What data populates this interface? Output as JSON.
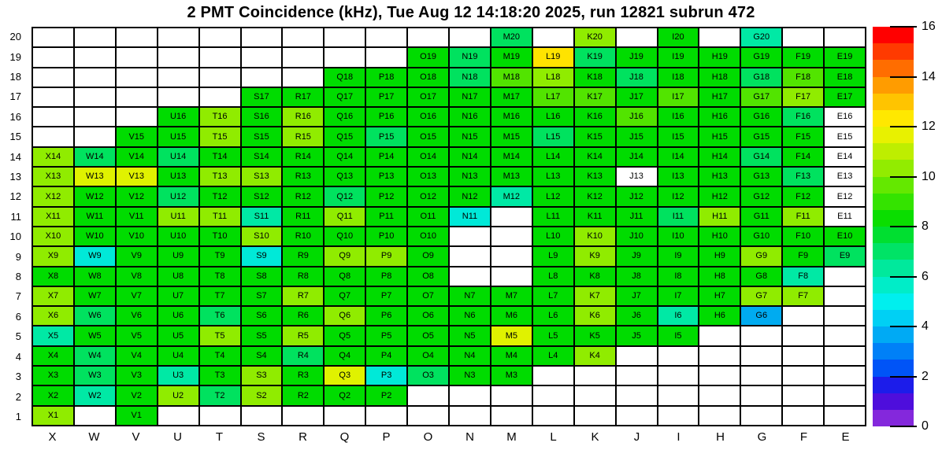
{
  "title": "2 PMT Coincidence (kHz), Tue Aug 12 14:18:20 2025, run 12821 subrun 472",
  "chart_data": {
    "type": "heatmap",
    "title": "2 PMT Coincidence (kHz), Tue Aug 12 14:18:20 2025, run 12821 subrun 472",
    "legend_position": "right",
    "zlim": [
      0,
      16
    ],
    "columns": [
      "X",
      "W",
      "V",
      "U",
      "T",
      "S",
      "R",
      "Q",
      "P",
      "O",
      "N",
      "M",
      "L",
      "K",
      "J",
      "I",
      "H",
      "G",
      "F",
      "E"
    ],
    "rows": [
      20,
      19,
      18,
      17,
      16,
      15,
      14,
      13,
      12,
      11,
      10,
      9,
      8,
      7,
      6,
      5,
      4,
      3,
      2,
      1
    ],
    "color_classes": {
      "g": "#00DC00",
      "lg": "#52E400",
      "yg": "#90EC00",
      "ly": "#E0F200",
      "y": "#FFE300",
      "sg": "#00E25F",
      "mg": "#00E9A5",
      "cy": "#00E9D8",
      "az": "#00ABF0",
      "w": "#FFFFFF"
    },
    "approx_value_per_class_khz": {
      "g": 9,
      "lg": 10,
      "yg": 11,
      "ly": 12.3,
      "y": 12.8,
      "sg": 8.2,
      "mg": 7.3,
      "cy": 6.3,
      "az": 4.7,
      "w": null
    },
    "cells": [
      [
        null,
        null,
        null,
        null,
        null,
        null,
        null,
        null,
        null,
        null,
        null,
        [
          "M20",
          "sg"
        ],
        null,
        [
          "K20",
          "yg"
        ],
        null,
        [
          "I20",
          "g"
        ],
        null,
        [
          "G20",
          "mg"
        ],
        null,
        null
      ],
      [
        null,
        null,
        null,
        null,
        null,
        null,
        null,
        null,
        null,
        [
          "O19",
          "g"
        ],
        [
          "N19",
          "sg"
        ],
        [
          "M19",
          "g"
        ],
        [
          "L19",
          "y"
        ],
        [
          "K19",
          "sg"
        ],
        [
          "J19",
          "g"
        ],
        [
          "I19",
          "g"
        ],
        [
          "H19",
          "g"
        ],
        [
          "G19",
          "g"
        ],
        [
          "F19",
          "g"
        ],
        [
          "E19",
          "g"
        ]
      ],
      [
        null,
        null,
        null,
        null,
        null,
        null,
        null,
        [
          "Q18",
          "g"
        ],
        [
          "P18",
          "g"
        ],
        [
          "O18",
          "g"
        ],
        [
          "N18",
          "sg"
        ],
        [
          "M18",
          "lg"
        ],
        [
          "L18",
          "yg"
        ],
        [
          "K18",
          "g"
        ],
        [
          "J18",
          "sg"
        ],
        [
          "I18",
          "g"
        ],
        [
          "H18",
          "g"
        ],
        [
          "G18",
          "sg"
        ],
        [
          "F18",
          "lg"
        ],
        [
          "E18",
          "g"
        ]
      ],
      [
        null,
        null,
        null,
        null,
        null,
        [
          "S17",
          "g"
        ],
        [
          "R17",
          "g"
        ],
        [
          "Q17",
          "g"
        ],
        [
          "P17",
          "g"
        ],
        [
          "O17",
          "g"
        ],
        [
          "N17",
          "g"
        ],
        [
          "M17",
          "g"
        ],
        [
          "L17",
          "lg"
        ],
        [
          "K17",
          "lg"
        ],
        [
          "J17",
          "g"
        ],
        [
          "I17",
          "lg"
        ],
        [
          "H17",
          "g"
        ],
        [
          "G17",
          "lg"
        ],
        [
          "F17",
          "yg"
        ],
        [
          "E17",
          "g"
        ]
      ],
      [
        null,
        null,
        null,
        [
          "U16",
          "g"
        ],
        [
          "T16",
          "yg"
        ],
        [
          "S16",
          "g"
        ],
        [
          "R16",
          "yg"
        ],
        [
          "Q16",
          "g"
        ],
        [
          "P16",
          "g"
        ],
        [
          "O16",
          "g"
        ],
        [
          "N16",
          "g"
        ],
        [
          "M16",
          "g"
        ],
        [
          "L16",
          "g"
        ],
        [
          "K16",
          "g"
        ],
        [
          "J16",
          "lg"
        ],
        [
          "I16",
          "g"
        ],
        [
          "H16",
          "g"
        ],
        [
          "G16",
          "g"
        ],
        [
          "F16",
          "sg"
        ],
        [
          "E16",
          "w"
        ]
      ],
      [
        null,
        null,
        [
          "V15",
          "g"
        ],
        [
          "U15",
          "g"
        ],
        [
          "T15",
          "yg"
        ],
        [
          "S15",
          "g"
        ],
        [
          "R15",
          "yg"
        ],
        [
          "Q15",
          "g"
        ],
        [
          "P15",
          "sg"
        ],
        [
          "O15",
          "g"
        ],
        [
          "N15",
          "g"
        ],
        [
          "M15",
          "g"
        ],
        [
          "L15",
          "sg"
        ],
        [
          "K15",
          "g"
        ],
        [
          "J15",
          "g"
        ],
        [
          "I15",
          "g"
        ],
        [
          "H15",
          "g"
        ],
        [
          "G15",
          "g"
        ],
        [
          "F15",
          "g"
        ],
        [
          "E15",
          "w"
        ]
      ],
      [
        [
          "X14",
          "yg"
        ],
        [
          "W14",
          "sg"
        ],
        [
          "V14",
          "g"
        ],
        [
          "U14",
          "sg"
        ],
        [
          "T14",
          "g"
        ],
        [
          "S14",
          "g"
        ],
        [
          "R14",
          "g"
        ],
        [
          "Q14",
          "g"
        ],
        [
          "P14",
          "g"
        ],
        [
          "O14",
          "g"
        ],
        [
          "N14",
          "g"
        ],
        [
          "M14",
          "g"
        ],
        [
          "L14",
          "g"
        ],
        [
          "K14",
          "g"
        ],
        [
          "J14",
          "g"
        ],
        [
          "I14",
          "g"
        ],
        [
          "H14",
          "g"
        ],
        [
          "G14",
          "sg"
        ],
        [
          "F14",
          "g"
        ],
        [
          "E14",
          "w"
        ]
      ],
      [
        [
          "X13",
          "yg"
        ],
        [
          "W13",
          "ly"
        ],
        [
          "V13",
          "ly"
        ],
        [
          "U13",
          "g"
        ],
        [
          "T13",
          "yg"
        ],
        [
          "S13",
          "yg"
        ],
        [
          "R13",
          "g"
        ],
        [
          "Q13",
          "g"
        ],
        [
          "P13",
          "g"
        ],
        [
          "O13",
          "g"
        ],
        [
          "N13",
          "g"
        ],
        [
          "M13",
          "g"
        ],
        [
          "L13",
          "g"
        ],
        [
          "K13",
          "g"
        ],
        [
          "J13",
          "w"
        ],
        [
          "I13",
          "g"
        ],
        [
          "H13",
          "g"
        ],
        [
          "G13",
          "g"
        ],
        [
          "F13",
          "sg"
        ],
        [
          "E13",
          "w"
        ]
      ],
      [
        [
          "X12",
          "yg"
        ],
        [
          "W12",
          "g"
        ],
        [
          "V12",
          "g"
        ],
        [
          "U12",
          "sg"
        ],
        [
          "T12",
          "g"
        ],
        [
          "S12",
          "g"
        ],
        [
          "R12",
          "g"
        ],
        [
          "Q12",
          "sg"
        ],
        [
          "P12",
          "g"
        ],
        [
          "O12",
          "g"
        ],
        [
          "N12",
          "g"
        ],
        [
          "M12",
          "mg"
        ],
        [
          "L12",
          "g"
        ],
        [
          "K12",
          "g"
        ],
        [
          "J12",
          "g"
        ],
        [
          "I12",
          "g"
        ],
        [
          "H12",
          "g"
        ],
        [
          "G12",
          "g"
        ],
        [
          "F12",
          "g"
        ],
        [
          "E12",
          "w"
        ]
      ],
      [
        [
          "X11",
          "yg"
        ],
        [
          "W11",
          "g"
        ],
        [
          "V11",
          "g"
        ],
        [
          "U11",
          "yg"
        ],
        [
          "T11",
          "yg"
        ],
        [
          "S11",
          "mg"
        ],
        [
          "R11",
          "g"
        ],
        [
          "Q11",
          "yg"
        ],
        [
          "P11",
          "g"
        ],
        [
          "O11",
          "g"
        ],
        [
          "N11",
          "cy"
        ],
        null,
        [
          "L11",
          "g"
        ],
        [
          "K11",
          "g"
        ],
        [
          "J11",
          "g"
        ],
        [
          "I11",
          "sg"
        ],
        [
          "H11",
          "yg"
        ],
        [
          "G11",
          "g"
        ],
        [
          "F11",
          "yg"
        ],
        [
          "E11",
          "w"
        ]
      ],
      [
        [
          "X10",
          "yg"
        ],
        [
          "W10",
          "g"
        ],
        [
          "V10",
          "g"
        ],
        [
          "U10",
          "g"
        ],
        [
          "T10",
          "g"
        ],
        [
          "S10",
          "yg"
        ],
        [
          "R10",
          "g"
        ],
        [
          "Q10",
          "g"
        ],
        [
          "P10",
          "g"
        ],
        [
          "O10",
          "g"
        ],
        null,
        null,
        [
          "L10",
          "g"
        ],
        [
          "K10",
          "yg"
        ],
        [
          "J10",
          "g"
        ],
        [
          "I10",
          "g"
        ],
        [
          "H10",
          "g"
        ],
        [
          "G10",
          "g"
        ],
        [
          "F10",
          "g"
        ],
        [
          "E10",
          "g"
        ]
      ],
      [
        [
          "X9",
          "yg"
        ],
        [
          "W9",
          "cy"
        ],
        [
          "V9",
          "g"
        ],
        [
          "U9",
          "g"
        ],
        [
          "T9",
          "g"
        ],
        [
          "S9",
          "cy"
        ],
        [
          "R9",
          "g"
        ],
        [
          "Q9",
          "yg"
        ],
        [
          "P9",
          "yg"
        ],
        [
          "O9",
          "g"
        ],
        null,
        null,
        [
          "L9",
          "g"
        ],
        [
          "K9",
          "yg"
        ],
        [
          "J9",
          "g"
        ],
        [
          "I9",
          "g"
        ],
        [
          "H9",
          "g"
        ],
        [
          "G9",
          "yg"
        ],
        [
          "F9",
          "g"
        ],
        [
          "E9",
          "sg"
        ]
      ],
      [
        [
          "X8",
          "g"
        ],
        [
          "W8",
          "g"
        ],
        [
          "V8",
          "g"
        ],
        [
          "U8",
          "g"
        ],
        [
          "T8",
          "g"
        ],
        [
          "S8",
          "g"
        ],
        [
          "R8",
          "g"
        ],
        [
          "Q8",
          "g"
        ],
        [
          "P8",
          "g"
        ],
        [
          "O8",
          "g"
        ],
        null,
        null,
        [
          "L8",
          "g"
        ],
        [
          "K8",
          "g"
        ],
        [
          "J8",
          "g"
        ],
        [
          "I8",
          "g"
        ],
        [
          "H8",
          "g"
        ],
        [
          "G8",
          "g"
        ],
        [
          "F8",
          "mg"
        ],
        null
      ],
      [
        [
          "X7",
          "yg"
        ],
        [
          "W7",
          "g"
        ],
        [
          "V7",
          "g"
        ],
        [
          "U7",
          "g"
        ],
        [
          "T7",
          "g"
        ],
        [
          "S7",
          "g"
        ],
        [
          "R7",
          "yg"
        ],
        [
          "Q7",
          "g"
        ],
        [
          "P7",
          "g"
        ],
        [
          "O7",
          "g"
        ],
        [
          "N7",
          "g"
        ],
        [
          "M7",
          "g"
        ],
        [
          "L7",
          "g"
        ],
        [
          "K7",
          "yg"
        ],
        [
          "J7",
          "g"
        ],
        [
          "I7",
          "g"
        ],
        [
          "H7",
          "g"
        ],
        [
          "G7",
          "yg"
        ],
        [
          "F7",
          "yg"
        ],
        null
      ],
      [
        [
          "X6",
          "yg"
        ],
        [
          "W6",
          "sg"
        ],
        [
          "V6",
          "g"
        ],
        [
          "U6",
          "g"
        ],
        [
          "T6",
          "sg"
        ],
        [
          "S6",
          "g"
        ],
        [
          "R6",
          "g"
        ],
        [
          "Q6",
          "yg"
        ],
        [
          "P6",
          "g"
        ],
        [
          "O6",
          "g"
        ],
        [
          "N6",
          "g"
        ],
        [
          "M6",
          "g"
        ],
        [
          "L6",
          "g"
        ],
        [
          "K6",
          "yg"
        ],
        [
          "J6",
          "g"
        ],
        [
          "I6",
          "mg"
        ],
        [
          "H6",
          "g"
        ],
        [
          "G6",
          "az"
        ],
        null,
        null
      ],
      [
        [
          "X5",
          "mg"
        ],
        [
          "W5",
          "g"
        ],
        [
          "V5",
          "g"
        ],
        [
          "U5",
          "g"
        ],
        [
          "T5",
          "yg"
        ],
        [
          "S5",
          "g"
        ],
        [
          "R5",
          "yg"
        ],
        [
          "Q5",
          "g"
        ],
        [
          "P5",
          "g"
        ],
        [
          "O5",
          "g"
        ],
        [
          "N5",
          "g"
        ],
        [
          "M5",
          "ly"
        ],
        [
          "L5",
          "g"
        ],
        [
          "K5",
          "g"
        ],
        [
          "J5",
          "g"
        ],
        [
          "I5",
          "g"
        ],
        null,
        null,
        null,
        null
      ],
      [
        [
          "X4",
          "g"
        ],
        [
          "W4",
          "sg"
        ],
        [
          "V4",
          "g"
        ],
        [
          "U4",
          "g"
        ],
        [
          "T4",
          "g"
        ],
        [
          "S4",
          "g"
        ],
        [
          "R4",
          "sg"
        ],
        [
          "Q4",
          "g"
        ],
        [
          "P4",
          "g"
        ],
        [
          "O4",
          "g"
        ],
        [
          "N4",
          "g"
        ],
        [
          "M4",
          "g"
        ],
        [
          "L4",
          "g"
        ],
        [
          "K4",
          "yg"
        ],
        null,
        null,
        null,
        null,
        null,
        null
      ],
      [
        [
          "X3",
          "g"
        ],
        [
          "W3",
          "sg"
        ],
        [
          "V3",
          "g"
        ],
        [
          "U3",
          "mg"
        ],
        [
          "T3",
          "g"
        ],
        [
          "S3",
          "yg"
        ],
        [
          "R3",
          "g"
        ],
        [
          "Q3",
          "ly"
        ],
        [
          "P3",
          "cy"
        ],
        [
          "O3",
          "sg"
        ],
        [
          "N3",
          "g"
        ],
        [
          "M3",
          "g"
        ],
        null,
        null,
        null,
        null,
        null,
        null,
        null,
        null
      ],
      [
        [
          "X2",
          "g"
        ],
        [
          "W2",
          "mg"
        ],
        [
          "V2",
          "g"
        ],
        [
          "U2",
          "yg"
        ],
        [
          "T2",
          "sg"
        ],
        [
          "S2",
          "yg"
        ],
        [
          "R2",
          "g"
        ],
        [
          "Q2",
          "g"
        ],
        [
          "P2",
          "g"
        ],
        null,
        null,
        null,
        null,
        null,
        null,
        null,
        null,
        null,
        null,
        null
      ],
      [
        [
          "X1",
          "yg"
        ],
        null,
        [
          "V1",
          "g"
        ],
        null,
        null,
        null,
        null,
        null,
        null,
        null,
        null,
        null,
        null,
        null,
        null,
        null,
        null,
        null,
        null,
        null
      ]
    ]
  },
  "colorbar": {
    "tick_labels": [
      "16",
      "14",
      "12",
      "10",
      "8",
      "6",
      "4",
      "2",
      "0"
    ],
    "tick_values": [
      16,
      14,
      12,
      10,
      8,
      6,
      4,
      2,
      0
    ],
    "band_colors": [
      "#FF0000",
      "#FF3A00",
      "#FF6D00",
      "#FF9C00",
      "#FFC400",
      "#FFE800",
      "#E8F100",
      "#BEEE00",
      "#92EC00",
      "#64E800",
      "#34E300",
      "#0ADE00",
      "#00DF30",
      "#00E366",
      "#00E99C",
      "#00EDC8",
      "#00EFEE",
      "#00D0F4",
      "#00AAF4",
      "#0080F7",
      "#0054F7",
      "#1C1CEA",
      "#4E0EDC",
      "#8428DC"
    ]
  }
}
